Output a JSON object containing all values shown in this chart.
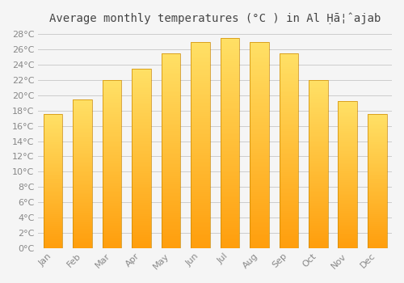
{
  "title": "Average monthly temperatures (°C ) in Al Ḥā¦ˆajab",
  "months": [
    "Jan",
    "Feb",
    "Mar",
    "Apr",
    "May",
    "Jun",
    "Jul",
    "Aug",
    "Sep",
    "Oct",
    "Nov",
    "Dec"
  ],
  "values": [
    17.5,
    19.5,
    22.0,
    23.5,
    25.5,
    27.0,
    27.5,
    27.0,
    25.5,
    22.0,
    19.2,
    17.5
  ],
  "bar_color_top": "#FFE066",
  "bar_color_bottom": "#FFA500",
  "bar_edge_color": "#CC8800",
  "background_color": "#f5f5f5",
  "plot_bg_color": "#f5f5f5",
  "grid_color": "#cccccc",
  "ytick_min": 0,
  "ytick_max": 28,
  "ytick_step": 2,
  "title_fontsize": 10,
  "tick_fontsize": 8,
  "tick_color": "#888888",
  "figsize": [
    5.0,
    3.5
  ],
  "dpi": 100,
  "bar_width": 0.65,
  "gradient_steps": 100
}
